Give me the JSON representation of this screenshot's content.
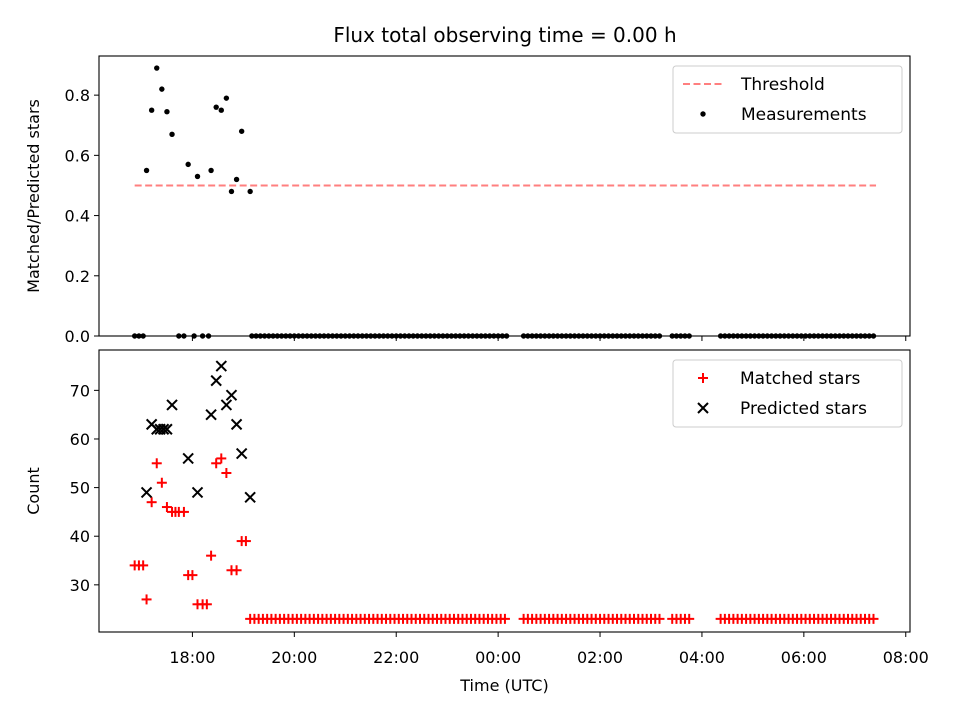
{
  "title": "Flux total observing time = 0.00 h",
  "chart_data": [
    {
      "type": "scatter",
      "panel": "top",
      "title": "Flux total observing time = 0.00 h",
      "xlabel": "",
      "ylabel": "Matched/Predicted stars",
      "xlim": [
        "16:10",
        "08:05"
      ],
      "ylim": [
        0,
        0.93
      ],
      "y_ticks": [
        "0.0",
        "0.2",
        "0.4",
        "0.6",
        "0.8"
      ],
      "y_tick_values": [
        0,
        0.2,
        0.4,
        0.6,
        0.8
      ],
      "legend_position": "top-right",
      "series": [
        {
          "name": "Threshold",
          "kind": "dashed-line",
          "color": "#ff7f7f",
          "x": [
            "16:52",
            "07:25"
          ],
          "y": [
            0.5,
            0.5
          ]
        },
        {
          "name": "Measurements",
          "kind": "dot",
          "color": "#000000",
          "points": [
            [
              "16:52",
              0
            ],
            [
              "16:57",
              0
            ],
            [
              "17:02",
              0
            ],
            [
              "17:06",
              0.55
            ],
            [
              "17:12",
              0.75
            ],
            [
              "17:18",
              0.89
            ],
            [
              "17:24",
              0.82
            ],
            [
              "17:30",
              0.745
            ],
            [
              "17:36",
              0.67
            ],
            [
              "17:44",
              0
            ],
            [
              "17:50",
              0
            ],
            [
              "17:55",
              0.57
            ],
            [
              "18:02",
              0
            ],
            [
              "18:06",
              0.53
            ],
            [
              "18:12",
              0
            ],
            [
              "18:19",
              0
            ],
            [
              "18:22",
              0.55
            ],
            [
              "18:28",
              0.76
            ],
            [
              "18:34",
              0.75
            ],
            [
              "18:40",
              0.79
            ],
            [
              "18:46",
              0.48
            ],
            [
              "18:52",
              0.52
            ],
            [
              "18:58",
              0.68
            ],
            [
              "19:08",
              0.48
            ]
          ],
          "zero_runs": [
            [
              "19:10",
              "00:12",
              5
            ],
            [
              "00:30",
              "03:12",
              5
            ],
            [
              "03:25",
              "03:48",
              5
            ],
            [
              "04:22",
              "07:25",
              5
            ]
          ]
        }
      ]
    },
    {
      "type": "scatter",
      "panel": "bottom",
      "xlabel": "Time (UTC)",
      "ylabel": "Count",
      "xlim": [
        "16:10",
        "08:05"
      ],
      "ylim": [
        20.3,
        78.3
      ],
      "x_ticks": [
        "18:00",
        "20:00",
        "22:00",
        "00:00",
        "02:00",
        "04:00",
        "06:00",
        "08:00"
      ],
      "y_ticks": [
        "30",
        "40",
        "50",
        "60",
        "70"
      ],
      "y_tick_values": [
        30,
        40,
        50,
        60,
        70
      ],
      "legend_position": "top-right",
      "series": [
        {
          "name": "Matched stars",
          "kind": "plus",
          "color": "#ff0000",
          "points": [
            [
              "16:52",
              34
            ],
            [
              "16:57",
              34
            ],
            [
              "17:02",
              34
            ],
            [
              "17:06",
              27
            ],
            [
              "17:12",
              47
            ],
            [
              "17:18",
              55
            ],
            [
              "17:24",
              51
            ],
            [
              "17:30",
              46
            ],
            [
              "17:36",
              45
            ],
            [
              "17:40",
              45
            ],
            [
              "17:44",
              45
            ],
            [
              "17:50",
              45
            ],
            [
              "17:55",
              32
            ],
            [
              "18:00",
              32
            ],
            [
              "18:06",
              26
            ],
            [
              "18:12",
              26
            ],
            [
              "18:17",
              26
            ],
            [
              "18:22",
              36
            ],
            [
              "18:28",
              55
            ],
            [
              "18:34",
              56
            ],
            [
              "18:40",
              53
            ],
            [
              "18:46",
              33
            ],
            [
              "18:52",
              33
            ],
            [
              "18:58",
              39
            ],
            [
              "19:03",
              39
            ]
          ],
          "constant_runs": [
            [
              "19:08",
              "00:12",
              23,
              5
            ],
            [
              "00:30",
              "03:12",
              23,
              5
            ],
            [
              "03:25",
              "03:48",
              23,
              5
            ],
            [
              "04:22",
              "07:25",
              23,
              5
            ]
          ]
        },
        {
          "name": "Predicted stars",
          "kind": "x",
          "color": "#000000",
          "points": [
            [
              "17:06",
              49
            ],
            [
              "17:12",
              63
            ],
            [
              "17:18",
              62
            ],
            [
              "17:22",
              62
            ],
            [
              "17:26",
              62
            ],
            [
              "17:30",
              62
            ],
            [
              "17:36",
              67
            ],
            [
              "17:55",
              56
            ],
            [
              "18:06",
              49
            ],
            [
              "18:22",
              65
            ],
            [
              "18:28",
              72
            ],
            [
              "18:34",
              75
            ],
            [
              "18:40",
              67
            ],
            [
              "18:46",
              69
            ],
            [
              "18:52",
              63
            ],
            [
              "18:58",
              57
            ],
            [
              "19:08",
              48
            ]
          ]
        }
      ]
    }
  ]
}
